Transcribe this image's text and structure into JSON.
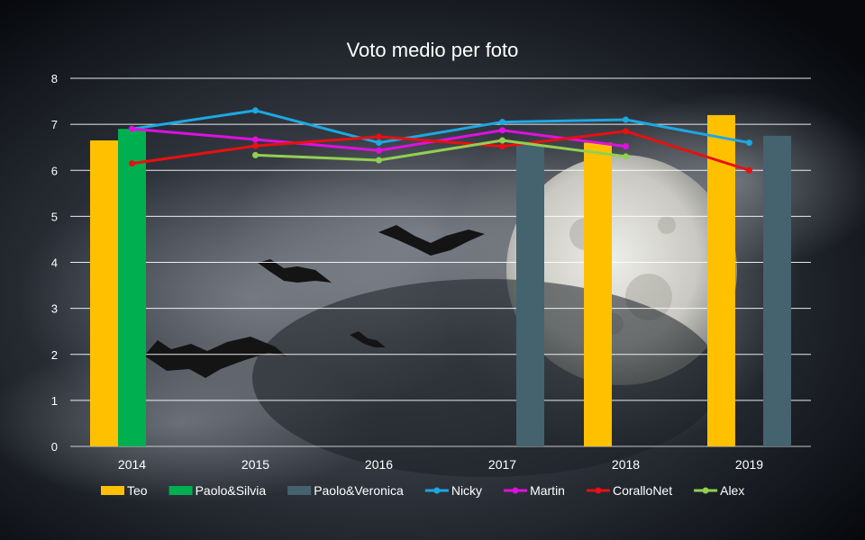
{
  "chart_data": {
    "type": "bar",
    "title": "Voto medio per foto",
    "categories": [
      "2014",
      "2015",
      "2016",
      "2017",
      "2018",
      "2019"
    ],
    "ylim": [
      0,
      8
    ],
    "yticks": [
      0,
      1,
      2,
      3,
      4,
      5,
      6,
      7,
      8
    ],
    "grid": true,
    "legend_position": "bottom",
    "bar_series": [
      {
        "name": "Teo",
        "color": "#FFC000",
        "values": [
          6.65,
          null,
          null,
          null,
          6.6,
          7.2
        ]
      },
      {
        "name": "Paolo&Silvia",
        "color": "#00B050",
        "values": [
          6.9,
          null,
          null,
          null,
          null,
          null
        ]
      },
      {
        "name": "Paolo&Veronica",
        "color": "#44636E",
        "values": [
          null,
          null,
          null,
          6.55,
          null,
          6.75
        ]
      }
    ],
    "line_series": [
      {
        "name": "Nicky",
        "color": "#1CA8E3",
        "values": [
          6.9,
          7.3,
          6.6,
          7.05,
          7.1,
          6.6
        ]
      },
      {
        "name": "Martin",
        "color": "#E010E0",
        "values": [
          6.9,
          6.67,
          6.43,
          6.87,
          6.52,
          null
        ]
      },
      {
        "name": "CoralloNet",
        "color": "#E81010",
        "values": [
          6.15,
          6.53,
          6.73,
          6.52,
          6.85,
          6.0
        ]
      },
      {
        "name": "Alex",
        "color": "#92D050",
        "values": [
          null,
          6.33,
          6.22,
          6.65,
          6.3,
          null
        ]
      }
    ]
  }
}
